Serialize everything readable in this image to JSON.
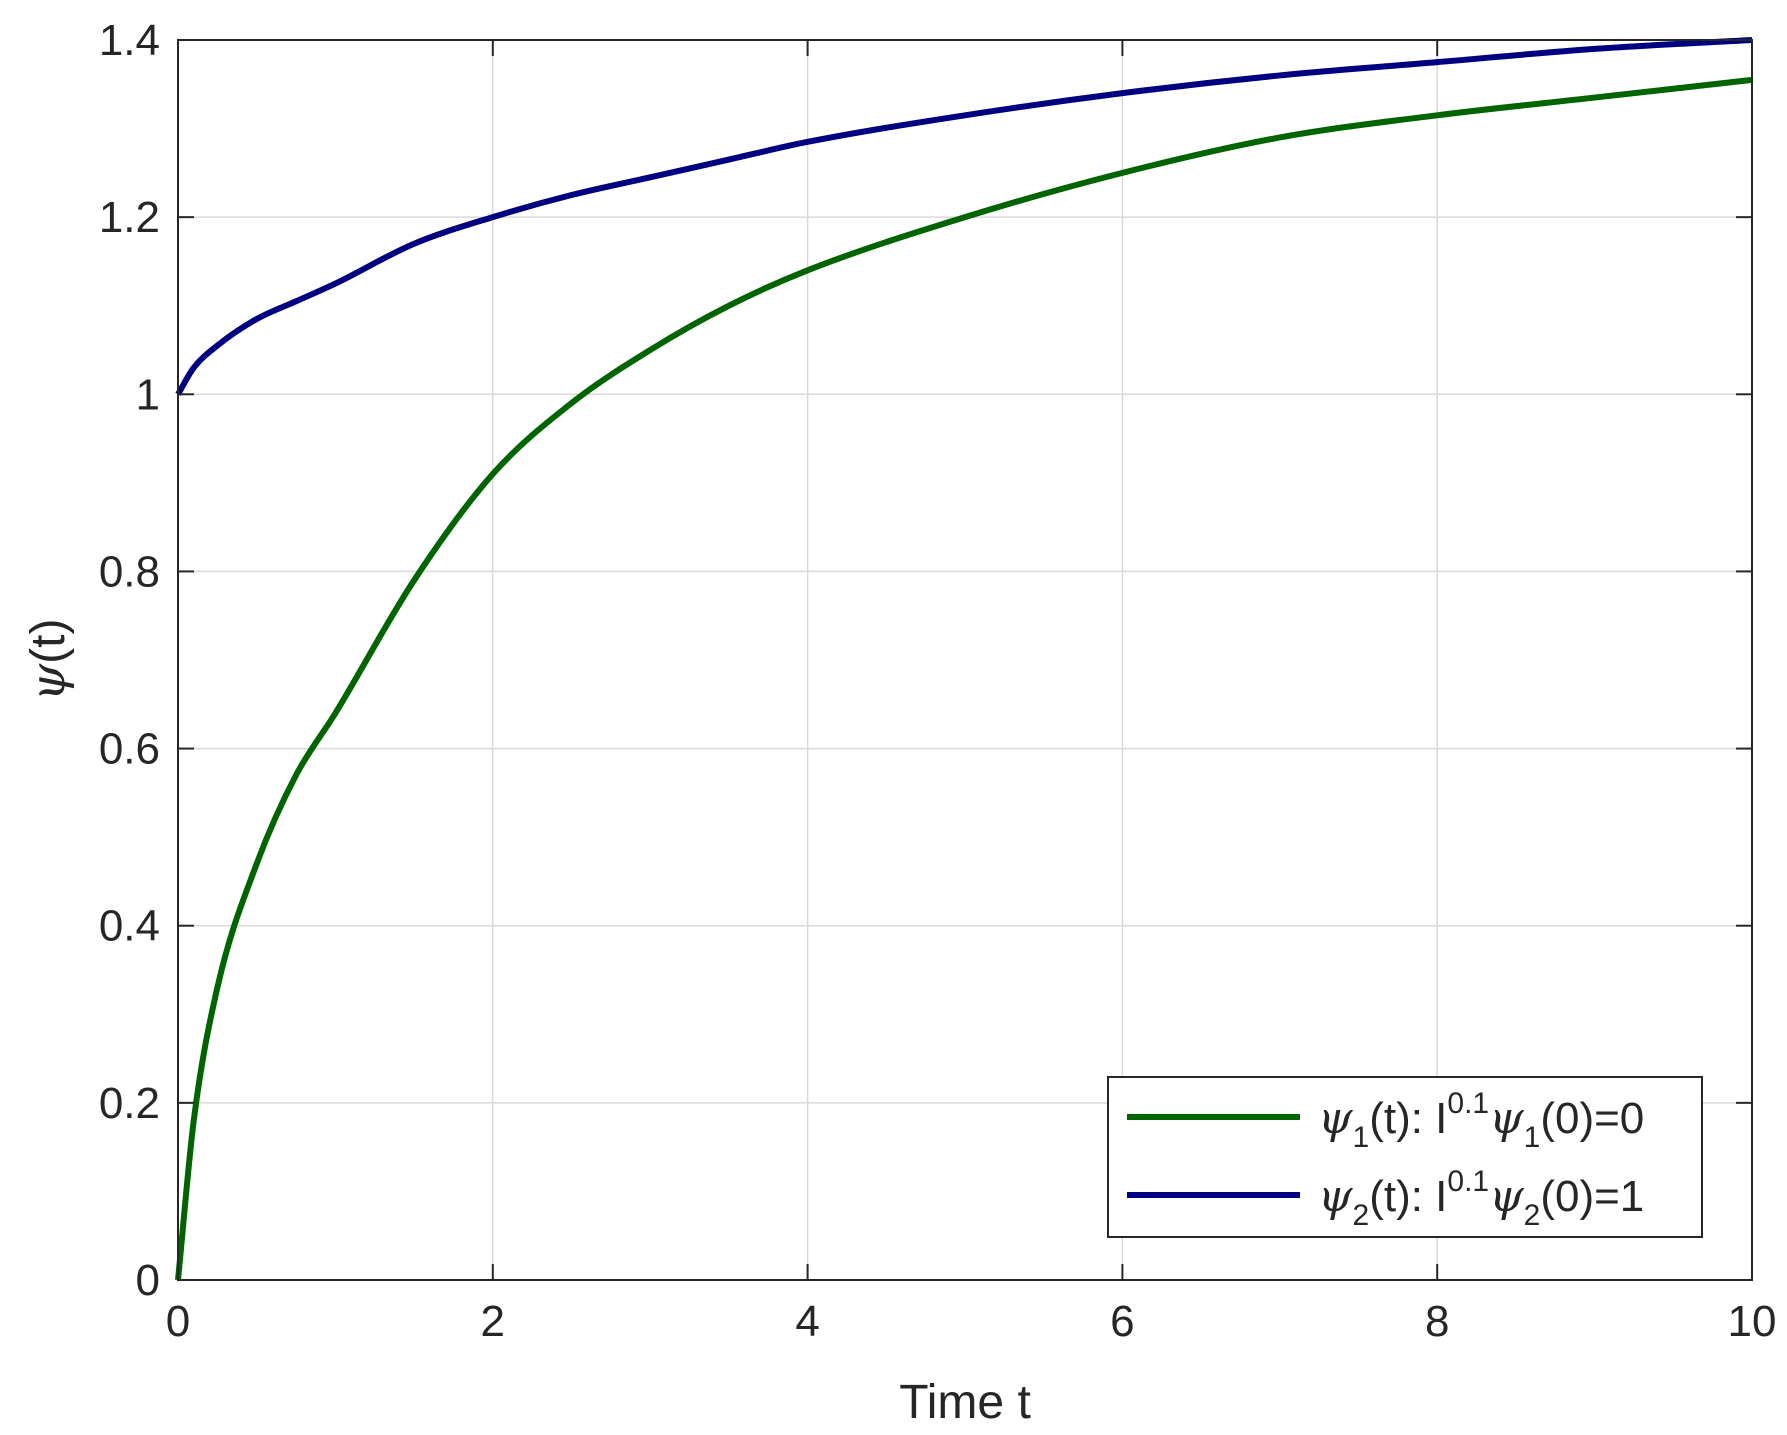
{
  "chart_data": {
    "type": "line",
    "title": "",
    "xlabel": "Time t",
    "ylabel": "(t)",
    "ylabel_symbol": "ψ",
    "xlim": [
      0,
      10
    ],
    "ylim": [
      0,
      1.4
    ],
    "xticks": [
      0,
      2,
      4,
      6,
      8,
      10
    ],
    "xtick_labels": [
      "0",
      "2",
      "4",
      "6",
      "8",
      "10"
    ],
    "yticks": [
      0,
      0.2,
      0.4,
      0.6,
      0.8,
      1,
      1.2,
      1.4
    ],
    "ytick_labels": [
      "0",
      "0.2",
      "0.4",
      "0.6",
      "0.8",
      "1",
      "1.2",
      "1.4"
    ],
    "grid": true,
    "legend_position": "bottom-right",
    "series": [
      {
        "id": "psi1",
        "color": "#006400",
        "legend": {
          "sym": "ψ",
          "sub1": "1",
          "mid": "(t): I",
          "sup": "0.1",
          "sym2": "ψ",
          "sub2": "1",
          "end": "(0)=0"
        },
        "x": [
          0,
          0.1,
          0.25,
          0.5,
          0.75,
          1,
          1.5,
          2,
          2.5,
          3,
          3.5,
          4,
          5,
          6,
          7,
          8,
          9,
          10
        ],
        "y": [
          0,
          0.18,
          0.33,
          0.47,
          0.57,
          0.64,
          0.79,
          0.91,
          0.99,
          1.05,
          1.1,
          1.14,
          1.2,
          1.25,
          1.29,
          1.315,
          1.335,
          1.355
        ]
      },
      {
        "id": "psi2",
        "color": "#000080",
        "legend": {
          "sym": "ψ",
          "sub1": "2",
          "mid": "(t): I",
          "sup": "0.1",
          "sym2": "ψ",
          "sub2": "2",
          "end": "(0)=1"
        },
        "x": [
          0,
          0.1,
          0.25,
          0.5,
          0.75,
          1,
          1.5,
          2,
          2.5,
          3,
          3.5,
          4,
          5,
          6,
          7,
          8,
          9,
          10
        ],
        "y": [
          1.0,
          1.03,
          1.055,
          1.085,
          1.105,
          1.125,
          1.17,
          1.2,
          1.225,
          1.245,
          1.265,
          1.285,
          1.315,
          1.34,
          1.36,
          1.375,
          1.39,
          1.4
        ]
      }
    ]
  }
}
